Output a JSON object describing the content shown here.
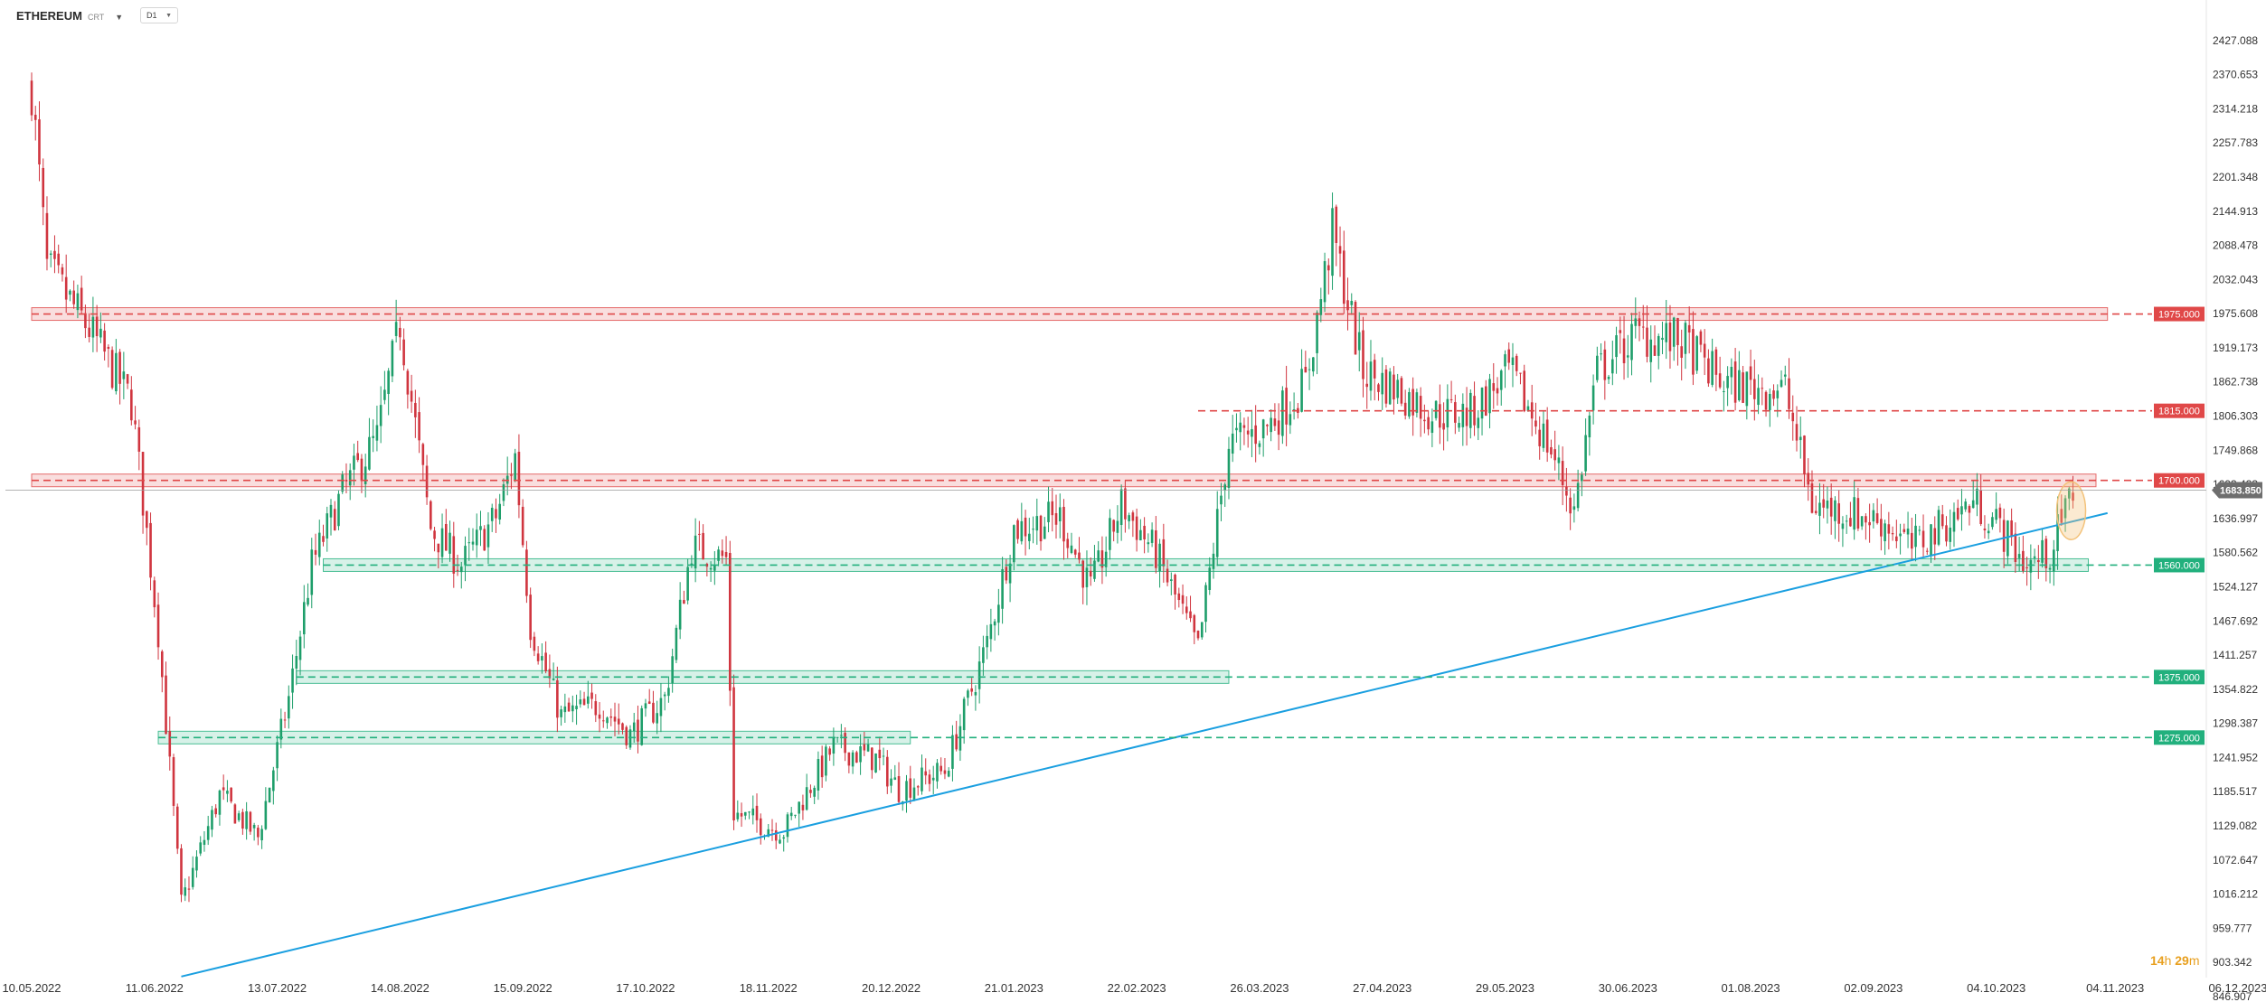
{
  "header": {
    "instrument": "ETHEREUM",
    "instrument_sub": "CRT",
    "interval": "D1"
  },
  "timer": {
    "hours": "14",
    "h_unit": "h",
    "minutes": "29",
    "m_unit": "m"
  },
  "current_price": "1683.850",
  "colors": {
    "up": "#1e9e6a",
    "down": "#d0353f",
    "resistance": "#e04848",
    "support": "#22b07d",
    "trendline": "#1a9fe0",
    "current_price_bg": "#6e6e6e",
    "highlight": "#f3c27a"
  },
  "chart_data": {
    "type": "candlestick",
    "y_range": [
      846.907,
      2483.523
    ],
    "y_ticks": [
      "2427.088",
      "2370.653",
      "2314.218",
      "2257.783",
      "2201.348",
      "2144.913",
      "2088.478",
      "2032.043",
      "1975.608",
      "1919.173",
      "1862.738",
      "1806.303",
      "1749.868",
      "1693.433",
      "1636.997",
      "1580.562",
      "1524.127",
      "1467.692",
      "1411.257",
      "1354.822",
      "1298.387",
      "1241.952",
      "1185.517",
      "1129.082",
      "1072.647",
      "1016.212",
      "959.777",
      "903.342",
      "846.907"
    ],
    "x_labels": [
      "10.05.2022",
      "11.06.2022",
      "13.07.2022",
      "14.08.2022",
      "15.09.2022",
      "17.10.2022",
      "18.11.2022",
      "20.12.2022",
      "21.01.2023",
      "22.02.2023",
      "26.03.2023",
      "27.04.2023",
      "29.05.2023",
      "30.06.2023",
      "01.08.2023",
      "02.09.2023",
      "04.10.2023",
      "04.11.2023",
      "06.12.2023"
    ],
    "levels": [
      {
        "value": 1975,
        "label": "1975.000",
        "kind": "resistance"
      },
      {
        "value": 1815,
        "label": "1815.000",
        "kind": "resistance"
      },
      {
        "value": 1700,
        "label": "1700.000",
        "kind": "resistance"
      },
      {
        "value": 1560,
        "label": "1560.000",
        "kind": "support"
      },
      {
        "value": 1375,
        "label": "1375.000",
        "kind": "support"
      },
      {
        "value": 1275,
        "label": "1275.000",
        "kind": "support"
      }
    ],
    "trendline": {
      "from": [
        "2022-06-18",
        880
      ],
      "to": [
        "2023-11-02",
        1646
      ]
    },
    "close_path": [
      [
        "2022-05-10",
        2350
      ],
      [
        "2022-05-14",
        2050
      ],
      [
        "2022-05-25",
        1950
      ],
      [
        "2022-06-05",
        1830
      ],
      [
        "2022-06-12",
        1450
      ],
      [
        "2022-06-18",
        1000
      ],
      [
        "2022-06-28",
        1180
      ],
      [
        "2022-07-08",
        1110
      ],
      [
        "2022-07-16",
        1340
      ],
      [
        "2022-07-22",
        1560
      ],
      [
        "2022-07-30",
        1680
      ],
      [
        "2022-08-08",
        1770
      ],
      [
        "2022-08-14",
        1960
      ],
      [
        "2022-08-22",
        1620
      ],
      [
        "2022-08-30",
        1560
      ],
      [
        "2022-09-08",
        1640
      ],
      [
        "2022-09-13",
        1740
      ],
      [
        "2022-09-17",
        1460
      ],
      [
        "2022-09-25",
        1310
      ],
      [
        "2022-10-05",
        1330
      ],
      [
        "2022-10-13",
        1280
      ],
      [
        "2022-10-22",
        1340
      ],
      [
        "2022-10-29",
        1590
      ],
      [
        "2022-11-07",
        1570
      ],
      [
        "2022-11-09",
        1150
      ],
      [
        "2022-11-22",
        1120
      ],
      [
        "2022-12-05",
        1260
      ],
      [
        "2022-12-16",
        1240
      ],
      [
        "2022-12-22",
        1190
      ],
      [
        "2023-01-03",
        1220
      ],
      [
        "2023-01-14",
        1430
      ],
      [
        "2023-01-21",
        1620
      ],
      [
        "2023-02-02",
        1640
      ],
      [
        "2023-02-10",
        1520
      ],
      [
        "2023-02-18",
        1660
      ],
      [
        "2023-02-27",
        1580
      ],
      [
        "2023-03-10",
        1420
      ],
      [
        "2023-03-18",
        1760
      ],
      [
        "2023-03-28",
        1790
      ],
      [
        "2023-04-07",
        1860
      ],
      [
        "2023-04-14",
        2110
      ],
      [
        "2023-04-22",
        1880
      ],
      [
        "2023-05-01",
        1850
      ],
      [
        "2023-05-10",
        1810
      ],
      [
        "2023-05-20",
        1810
      ],
      [
        "2023-05-30",
        1880
      ],
      [
        "2023-06-10",
        1750
      ],
      [
        "2023-06-16",
        1650
      ],
      [
        "2023-06-22",
        1880
      ],
      [
        "2023-07-02",
        1940
      ],
      [
        "2023-07-14",
        1930
      ],
      [
        "2023-07-25",
        1860
      ],
      [
        "2023-08-10",
        1850
      ],
      [
        "2023-08-17",
        1660
      ],
      [
        "2023-08-25",
        1650
      ],
      [
        "2023-09-05",
        1630
      ],
      [
        "2023-09-12",
        1590
      ],
      [
        "2023-09-20",
        1625
      ],
      [
        "2023-09-28",
        1665
      ],
      [
        "2023-10-04",
        1630
      ],
      [
        "2023-10-12",
        1560
      ],
      [
        "2023-10-18",
        1580
      ],
      [
        "2023-10-24",
        1684
      ]
    ]
  }
}
